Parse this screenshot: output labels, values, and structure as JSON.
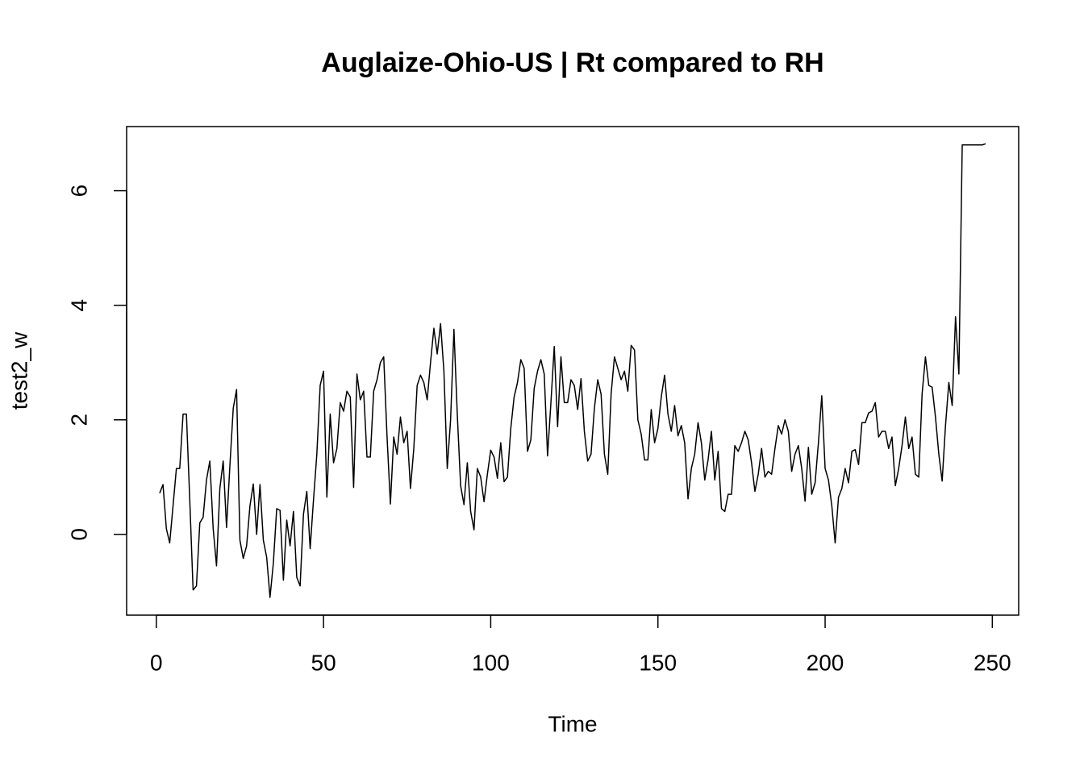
{
  "chart_data": {
    "type": "line",
    "title": "Auglaize-Ohio-US | Rt compared to RH",
    "xlabel": "Time",
    "ylabel": "test2_w",
    "xlim": [
      -8.88,
      257.88
    ],
    "ylim": [
      -1.41,
      7.12
    ],
    "xticks": [
      0,
      50,
      100,
      150,
      200,
      250
    ],
    "yticks": [
      0,
      2,
      4,
      6
    ],
    "x": [
      1,
      2,
      3,
      4,
      5,
      6,
      7,
      8,
      9,
      10,
      11,
      12,
      13,
      14,
      15,
      16,
      17,
      18,
      19,
      20,
      21,
      22,
      23,
      24,
      25,
      26,
      27,
      28,
      29,
      30,
      31,
      32,
      33,
      34,
      35,
      36,
      37,
      38,
      39,
      40,
      41,
      42,
      43,
      44,
      45,
      46,
      47,
      48,
      49,
      50,
      51,
      52,
      53,
      54,
      55,
      56,
      57,
      58,
      59,
      60,
      61,
      62,
      63,
      64,
      65,
      66,
      67,
      68,
      69,
      70,
      71,
      72,
      73,
      74,
      75,
      76,
      77,
      78,
      79,
      80,
      81,
      82,
      83,
      84,
      85,
      86,
      87,
      88,
      89,
      90,
      91,
      92,
      93,
      94,
      95,
      96,
      97,
      98,
      99,
      100,
      101,
      102,
      103,
      104,
      105,
      106,
      107,
      108,
      109,
      110,
      111,
      112,
      113,
      114,
      115,
      116,
      117,
      118,
      119,
      120,
      121,
      122,
      123,
      124,
      125,
      126,
      127,
      128,
      129,
      130,
      131,
      132,
      133,
      134,
      135,
      136,
      137,
      138,
      139,
      140,
      141,
      142,
      143,
      144,
      145,
      146,
      147,
      148,
      149,
      150,
      151,
      152,
      153,
      154,
      155,
      156,
      157,
      158,
      159,
      160,
      161,
      162,
      163,
      164,
      165,
      166,
      167,
      168,
      169,
      170,
      171,
      172,
      173,
      174,
      175,
      176,
      177,
      178,
      179,
      180,
      181,
      182,
      183,
      184,
      185,
      186,
      187,
      188,
      189,
      190,
      191,
      192,
      193,
      194,
      195,
      196,
      197,
      198,
      199,
      200,
      201,
      202,
      203,
      204,
      205,
      206,
      207,
      208,
      209,
      210,
      211,
      212,
      213,
      214,
      215,
      216,
      217,
      218,
      219,
      220,
      221,
      222,
      223,
      224,
      225,
      226,
      227,
      228,
      229,
      230,
      231,
      232,
      233,
      234,
      235,
      236,
      237,
      238,
      239,
      240,
      241,
      242,
      243,
      244,
      245,
      246,
      247,
      248
    ],
    "series": [
      {
        "color": "#000000",
        "values": [
          0.72,
          0.87,
          0.1,
          -0.15,
          0.5,
          1.15,
          1.15,
          2.1,
          2.1,
          0.6,
          -0.97,
          -0.9,
          0.2,
          0.3,
          0.95,
          1.28,
          0.1,
          -0.55,
          0.8,
          1.28,
          0.12,
          1.2,
          2.2,
          2.53,
          -0.1,
          -0.42,
          -0.2,
          0.5,
          0.88,
          0.0,
          0.87,
          -0.1,
          -0.4,
          -1.1,
          -0.5,
          0.45,
          0.42,
          -0.8,
          0.25,
          -0.2,
          0.4,
          -0.75,
          -0.9,
          0.35,
          0.75,
          -0.25,
          0.6,
          1.4,
          2.6,
          2.85,
          0.65,
          2.1,
          1.25,
          1.5,
          2.3,
          2.15,
          2.5,
          2.4,
          0.82,
          2.8,
          2.35,
          2.5,
          1.35,
          1.35,
          2.5,
          2.7,
          3.0,
          3.1,
          1.7,
          0.53,
          1.7,
          1.4,
          2.05,
          1.6,
          1.8,
          0.8,
          1.5,
          2.6,
          2.78,
          2.65,
          2.35,
          3.0,
          3.6,
          3.15,
          3.68,
          2.85,
          1.15,
          2.0,
          3.58,
          2.1,
          0.85,
          0.52,
          1.25,
          0.4,
          0.08,
          1.15,
          1.0,
          0.57,
          1.05,
          1.47,
          1.35,
          0.98,
          1.6,
          0.92,
          1.0,
          1.85,
          2.4,
          2.65,
          3.05,
          2.9,
          1.45,
          1.65,
          2.55,
          2.85,
          3.05,
          2.8,
          1.37,
          2.3,
          3.28,
          1.88,
          3.1,
          2.3,
          2.3,
          2.7,
          2.6,
          2.18,
          2.72,
          1.8,
          1.28,
          1.4,
          2.2,
          2.7,
          2.45,
          1.4,
          1.05,
          2.45,
          3.1,
          2.9,
          2.7,
          2.85,
          2.5,
          3.3,
          3.22,
          2.0,
          1.75,
          1.3,
          1.3,
          2.18,
          1.6,
          1.85,
          2.4,
          2.78,
          2.1,
          1.8,
          2.25,
          1.72,
          1.9,
          1.6,
          0.62,
          1.15,
          1.4,
          1.95,
          1.6,
          0.95,
          1.3,
          1.8,
          0.95,
          1.45,
          0.45,
          0.4,
          0.7,
          0.7,
          1.55,
          1.45,
          1.6,
          1.8,
          1.65,
          1.25,
          0.75,
          1.05,
          1.5,
          1.0,
          1.1,
          1.05,
          1.5,
          1.9,
          1.75,
          2.0,
          1.8,
          1.1,
          1.4,
          1.55,
          1.15,
          0.58,
          1.52,
          0.7,
          0.9,
          1.6,
          2.42,
          1.15,
          0.95,
          0.5,
          -0.15,
          0.65,
          0.8,
          1.15,
          0.9,
          1.45,
          1.48,
          1.22,
          1.95,
          1.95,
          2.12,
          2.15,
          2.3,
          1.7,
          1.8,
          1.8,
          1.5,
          1.7,
          0.85,
          1.15,
          1.55,
          2.05,
          1.5,
          1.7,
          1.05,
          1.0,
          2.45,
          3.1,
          2.6,
          2.57,
          2.05,
          1.4,
          0.93,
          1.9,
          2.65,
          2.25,
          3.8,
          2.8,
          6.8,
          6.8,
          6.8,
          6.8,
          6.8,
          6.8,
          6.8,
          6.82
        ]
      }
    ]
  }
}
